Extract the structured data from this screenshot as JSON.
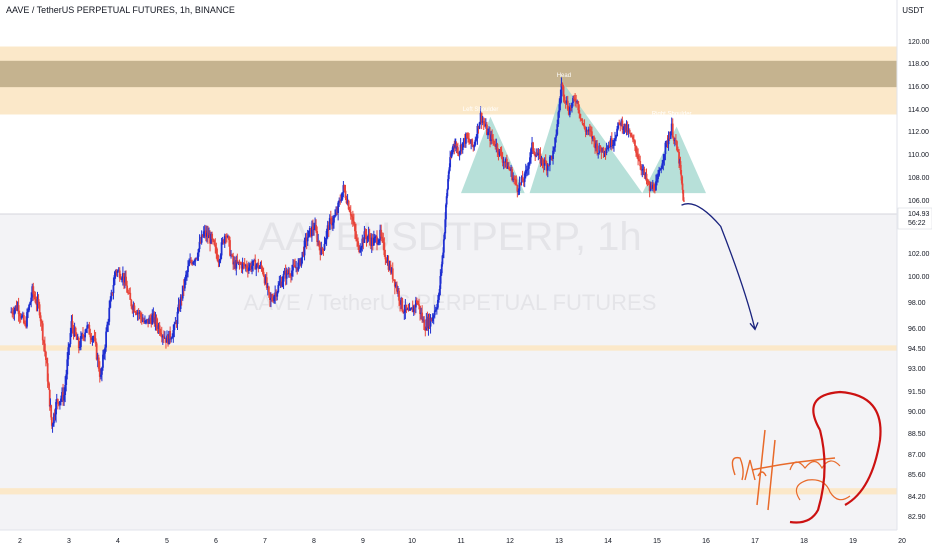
{
  "chart_data": {
    "type": "candlestick",
    "title": "AAVE / TetherUS PERPETUAL FUTURES, 1h, BINANCE",
    "unit": "USDT",
    "watermark": {
      "symbol": "AAVEUSDTPERP, 1h",
      "name": "AAVE / TetherUS PERPETUAL FUTURES"
    },
    "price_ticks": [
      "120.00",
      "118.00",
      "116.00",
      "114.00",
      "112.00",
      "110.00",
      "108.00",
      "106.00",
      "102.00",
      "100.00",
      "98.00",
      "96.00",
      "94.50",
      "93.00",
      "91.50",
      "90.00",
      "88.50",
      "87.00",
      "85.60",
      "84.20",
      "82.90"
    ],
    "price_values": [
      120,
      118,
      116,
      114,
      112,
      110,
      108,
      106,
      102,
      100,
      98,
      96,
      94.5,
      93,
      91.5,
      90,
      88.5,
      87,
      85.6,
      84.2,
      82.9
    ],
    "date_ticks": [
      "2",
      "3",
      "4",
      "5",
      "6",
      "7",
      "8",
      "9",
      "10",
      "11",
      "12",
      "13",
      "14",
      "15",
      "16",
      "17",
      "18",
      "19",
      "20"
    ],
    "last_price": "104.93",
    "countdown": "56:22",
    "zones": [
      {
        "from": 113.5,
        "to": 119.5,
        "color": "#fbe7c6"
      },
      {
        "from": 115.9,
        "to": 118.2,
        "color": "#c2b08c"
      },
      {
        "from": 94.3,
        "to": 94.7,
        "color": "#fbe7c6"
      },
      {
        "from": 84.3,
        "to": 84.7,
        "color": "#fbe7c6"
      }
    ],
    "pattern_labels": [
      {
        "text": "Left Shoulder",
        "x": 11.4,
        "y": 113.8
      },
      {
        "text": "Head",
        "x": 13.1,
        "y": 116.8
      },
      {
        "text": "Right Shoulder",
        "x": 15.3,
        "y": 113.4
      }
    ],
    "triangles": [
      {
        "points": [
          [
            11.0,
            106.6
          ],
          [
            11.6,
            113.3
          ],
          [
            12.3,
            106.6
          ]
        ]
      },
      {
        "points": [
          [
            12.4,
            106.6
          ],
          [
            13.1,
            116.2
          ],
          [
            14.7,
            106.6
          ]
        ]
      },
      {
        "points": [
          [
            14.7,
            106.6
          ],
          [
            15.4,
            112.4
          ],
          [
            16.0,
            106.6
          ]
        ]
      }
    ],
    "projection": [
      [
        15.5,
        105.6
      ],
      [
        15.8,
        106.2
      ],
      [
        16.3,
        104.0
      ],
      [
        16.8,
        99.0
      ],
      [
        17.0,
        95.9
      ]
    ],
    "candle_anchors": [
      [
        1.8,
        97.2
      ],
      [
        1.95,
        97.7
      ],
      [
        2.1,
        96.1
      ],
      [
        2.25,
        98.8
      ],
      [
        2.4,
        97.4
      ],
      [
        2.55,
        93.0
      ],
      [
        2.65,
        89.0
      ],
      [
        2.75,
        90.7
      ],
      [
        2.9,
        91.2
      ],
      [
        3.05,
        96.3
      ],
      [
        3.2,
        94.6
      ],
      [
        3.35,
        96.1
      ],
      [
        3.5,
        95.3
      ],
      [
        3.65,
        92.3
      ],
      [
        3.8,
        96.8
      ],
      [
        3.95,
        100.5
      ],
      [
        4.1,
        100.1
      ],
      [
        4.25,
        98.0
      ],
      [
        4.4,
        97.3
      ],
      [
        4.55,
        96.3
      ],
      [
        4.7,
        96.8
      ],
      [
        4.85,
        96.0
      ],
      [
        5.0,
        95.1
      ],
      [
        5.15,
        95.9
      ],
      [
        5.3,
        98.5
      ],
      [
        5.45,
        101.0
      ],
      [
        5.6,
        101.8
      ],
      [
        5.75,
        103.5
      ],
      [
        5.9,
        103.0
      ],
      [
        6.05,
        101.5
      ],
      [
        6.2,
        103.7
      ],
      [
        6.35,
        101.0
      ],
      [
        6.5,
        101.0
      ],
      [
        6.65,
        100.8
      ],
      [
        6.8,
        101.0
      ],
      [
        6.95,
        100.6
      ],
      [
        7.1,
        98.0
      ],
      [
        7.25,
        99.0
      ],
      [
        7.4,
        100.1
      ],
      [
        7.55,
        100.5
      ],
      [
        7.7,
        101.0
      ],
      [
        7.85,
        103.1
      ],
      [
        8.0,
        104.0
      ],
      [
        8.15,
        102.0
      ],
      [
        8.3,
        104.1
      ],
      [
        8.45,
        104.8
      ],
      [
        8.6,
        107.0
      ],
      [
        8.75,
        105.1
      ],
      [
        8.9,
        102.3
      ],
      [
        9.05,
        103.4
      ],
      [
        9.2,
        102.8
      ],
      [
        9.35,
        103.3
      ],
      [
        9.5,
        101.2
      ],
      [
        9.65,
        99.6
      ],
      [
        9.8,
        97.6
      ],
      [
        9.95,
        97.0
      ],
      [
        10.1,
        98.1
      ],
      [
        10.25,
        96.2
      ],
      [
        10.4,
        96.7
      ],
      [
        10.55,
        98.4
      ],
      [
        10.65,
        103.0
      ],
      [
        10.75,
        108.6
      ],
      [
        10.85,
        111.0
      ],
      [
        10.95,
        110.3
      ],
      [
        11.1,
        111.4
      ],
      [
        11.25,
        110.6
      ],
      [
        11.4,
        113.4
      ],
      [
        11.55,
        111.7
      ],
      [
        11.7,
        110.9
      ],
      [
        11.85,
        109.6
      ],
      [
        12.0,
        108.6
      ],
      [
        12.15,
        107.1
      ],
      [
        12.3,
        107.9
      ],
      [
        12.45,
        110.6
      ],
      [
        12.6,
        109.6
      ],
      [
        12.75,
        109.0
      ],
      [
        12.9,
        110.2
      ],
      [
        13.05,
        116.1
      ],
      [
        13.2,
        113.9
      ],
      [
        13.35,
        115.0
      ],
      [
        13.5,
        112.3
      ],
      [
        13.65,
        111.7
      ],
      [
        13.8,
        110.3
      ],
      [
        13.95,
        110.5
      ],
      [
        14.1,
        111.2
      ],
      [
        14.25,
        112.8
      ],
      [
        14.4,
        112.0
      ],
      [
        14.55,
        110.7
      ],
      [
        14.7,
        108.6
      ],
      [
        14.85,
        106.9
      ],
      [
        15.0,
        107.4
      ],
      [
        15.15,
        110.3
      ],
      [
        15.3,
        112.3
      ],
      [
        15.45,
        109.5
      ],
      [
        15.55,
        105.7
      ]
    ]
  }
}
